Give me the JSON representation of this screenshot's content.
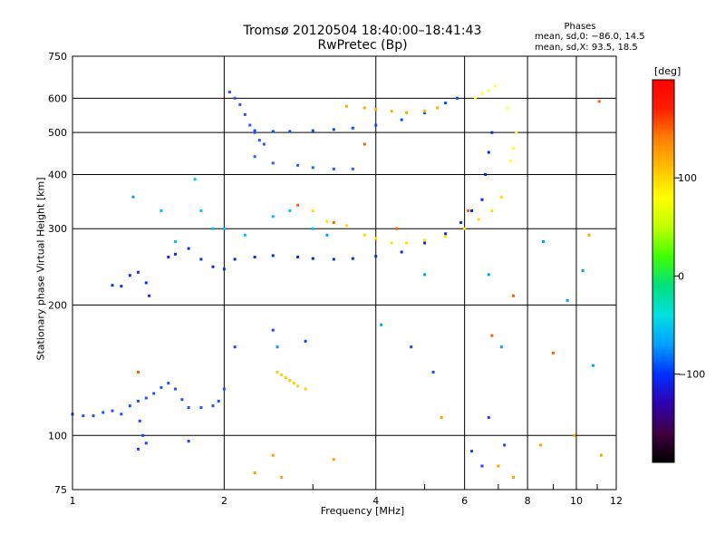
{
  "header": {
    "title": "Tromsø 20120504 18:40:00–18:41:43",
    "subtitle": "RwPretec (Bp)"
  },
  "phases": {
    "heading": "Phases",
    "line_0": "mean, sd,0: −86.0, 14.5",
    "line_x": "mean, sd,X:  93.5, 18.5"
  },
  "colors": {
    "axis": "#000000",
    "background": "#ffffff"
  },
  "colorbar": {
    "title": "[deg]",
    "ticks": [
      {
        "value": 100,
        "label": "100"
      },
      {
        "value": 0,
        "label": "0"
      },
      {
        "value": -100,
        "label": "−100"
      }
    ],
    "range": [
      -190,
      200
    ],
    "stops": [
      "#000000",
      "#400040",
      "#3000b0",
      "#0030ff",
      "#00a0ff",
      "#00e0e0",
      "#00e080",
      "#40ff00",
      "#c0ff00",
      "#ffff00",
      "#ffc000",
      "#ff8000",
      "#ff2000",
      "#ff0000"
    ]
  },
  "chart_data": {
    "type": "scatter",
    "title": "Tromsø 20120504 18:40:00–18:41:43",
    "subtitle": "RwPretec (Bp)",
    "xlabel": "Frequency [MHz]",
    "ylabel": "Stationary phase Virtual Height [km]",
    "xscale": "log",
    "yscale": "log",
    "xlim": [
      1,
      12
    ],
    "ylim": [
      75,
      750
    ],
    "xticks": [
      {
        "value": 1,
        "label": "1"
      },
      {
        "value": 2,
        "label": "2"
      },
      {
        "value": 4,
        "label": "4"
      },
      {
        "value": 6,
        "label": "6"
      },
      {
        "value": 8,
        "label": "8"
      },
      {
        "value": 10,
        "label": "10"
      },
      {
        "value": 12,
        "label": "12"
      }
    ],
    "yticks": [
      {
        "value": 75,
        "label": "75"
      },
      {
        "value": 100,
        "label": "100"
      },
      {
        "value": 200,
        "label": "200"
      },
      {
        "value": 300,
        "label": "300"
      },
      {
        "value": 400,
        "label": "400"
      },
      {
        "value": 500,
        "label": "500"
      },
      {
        "value": 600,
        "label": "600"
      },
      {
        "value": 750,
        "label": "750"
      }
    ],
    "grid": true,
    "colorbar_label": "[deg]",
    "series": [
      {
        "color": "#2050ff",
        "points": [
          [
            1.0,
            112
          ],
          [
            1.05,
            111
          ],
          [
            1.1,
            111
          ],
          [
            1.15,
            113
          ],
          [
            1.2,
            114
          ],
          [
            1.25,
            112
          ],
          [
            1.3,
            117
          ],
          [
            1.35,
            120
          ],
          [
            1.4,
            122
          ],
          [
            1.45,
            125
          ],
          [
            1.5,
            129
          ],
          [
            1.55,
            132
          ],
          [
            1.6,
            128
          ],
          [
            1.65,
            121
          ],
          [
            1.7,
            116
          ],
          [
            1.8,
            116
          ],
          [
            1.9,
            117
          ],
          [
            1.95,
            120
          ],
          [
            2.0,
            128
          ]
        ]
      },
      {
        "color": "#1030e0",
        "points": [
          [
            1.2,
            222
          ],
          [
            1.25,
            221
          ],
          [
            1.3,
            234
          ],
          [
            1.35,
            238
          ],
          [
            1.4,
            225
          ],
          [
            1.42,
            210
          ],
          [
            1.55,
            258
          ],
          [
            1.6,
            262
          ],
          [
            1.7,
            270
          ],
          [
            1.8,
            255
          ],
          [
            1.9,
            245
          ],
          [
            2.0,
            242
          ]
        ]
      },
      {
        "color": "#0030d0",
        "points": [
          [
            2.1,
            255
          ],
          [
            2.3,
            258
          ],
          [
            2.5,
            260
          ],
          [
            2.8,
            258
          ],
          [
            3.0,
            256
          ],
          [
            3.3,
            255
          ],
          [
            3.6,
            256
          ],
          [
            4.0,
            259
          ],
          [
            4.5,
            265
          ],
          [
            5.0,
            278
          ],
          [
            5.5,
            292
          ],
          [
            5.9,
            310
          ],
          [
            6.2,
            330
          ],
          [
            6.5,
            350
          ],
          [
            6.6,
            400
          ],
          [
            6.7,
            450
          ],
          [
            6.8,
            500
          ]
        ]
      },
      {
        "color": "#ffe000",
        "points": [
          [
            3.0,
            330
          ],
          [
            3.2,
            312
          ],
          [
            3.5,
            305
          ],
          [
            3.8,
            290
          ],
          [
            4.0,
            285
          ],
          [
            4.3,
            278
          ],
          [
            4.6,
            278
          ],
          [
            5.0,
            282
          ],
          [
            5.5,
            288
          ],
          [
            6.0,
            300
          ],
          [
            6.4,
            315
          ],
          [
            6.8,
            330
          ],
          [
            7.1,
            355
          ]
        ]
      },
      {
        "color": "#0050ff",
        "points": [
          [
            2.3,
            505
          ],
          [
            2.5,
            503
          ],
          [
            2.7,
            503
          ],
          [
            3.0,
            505
          ],
          [
            3.3,
            508
          ],
          [
            3.6,
            512
          ],
          [
            4.0,
            520
          ],
          [
            4.5,
            535
          ],
          [
            5.0,
            555
          ],
          [
            5.5,
            585
          ],
          [
            5.8,
            600
          ]
        ]
      },
      {
        "color": "#ffb000",
        "points": [
          [
            3.5,
            575
          ],
          [
            3.8,
            570
          ],
          [
            4.0,
            565
          ],
          [
            4.3,
            560
          ],
          [
            4.6,
            555
          ],
          [
            5.0,
            560
          ],
          [
            5.3,
            570
          ]
        ]
      },
      {
        "color": "#2060ff",
        "points": [
          [
            2.3,
            440
          ],
          [
            2.5,
            425
          ],
          [
            2.8,
            420
          ],
          [
            3.0,
            415
          ],
          [
            3.3,
            412
          ],
          [
            3.6,
            412
          ]
        ]
      },
      {
        "color": "#3050ff",
        "points": [
          [
            2.05,
            620
          ],
          [
            2.1,
            600
          ],
          [
            2.15,
            580
          ],
          [
            2.2,
            550
          ],
          [
            2.25,
            520
          ],
          [
            2.3,
            500
          ],
          [
            2.35,
            480
          ],
          [
            2.4,
            470
          ]
        ]
      },
      {
        "color": "#ffd000",
        "points": [
          [
            2.55,
            140
          ],
          [
            2.6,
            138
          ],
          [
            2.65,
            136
          ],
          [
            2.7,
            134
          ],
          [
            2.75,
            132
          ],
          [
            2.8,
            130
          ],
          [
            2.9,
            128
          ]
        ]
      },
      {
        "color": "#ffff40",
        "points": [
          [
            6.3,
            600
          ],
          [
            6.5,
            615
          ],
          [
            6.7,
            625
          ],
          [
            6.9,
            640
          ],
          [
            7.3,
            570
          ],
          [
            7.4,
            430
          ],
          [
            7.5,
            460
          ],
          [
            7.6,
            500
          ]
        ]
      },
      {
        "color": "#00c0ff",
        "points": [
          [
            1.5,
            330
          ],
          [
            1.6,
            280
          ],
          [
            1.75,
            390
          ],
          [
            1.8,
            330
          ],
          [
            1.9,
            300
          ],
          [
            2.0,
            300
          ],
          [
            2.2,
            290
          ],
          [
            2.5,
            320
          ],
          [
            2.7,
            330
          ],
          [
            3.0,
            300
          ]
        ]
      },
      {
        "color": "#ff6000",
        "points": [
          [
            1.35,
            140
          ],
          [
            2.8,
            340
          ],
          [
            3.3,
            310
          ],
          [
            3.8,
            470
          ],
          [
            4.4,
            300
          ],
          [
            6.1,
            330
          ],
          [
            6.8,
            170
          ],
          [
            7.5,
            210
          ],
          [
            9.0,
            155
          ],
          [
            11.1,
            590
          ]
        ]
      },
      {
        "color": "#00a0ff",
        "points": [
          [
            1.32,
            355
          ],
          [
            2.55,
            160
          ],
          [
            3.2,
            290
          ],
          [
            4.1,
            180
          ],
          [
            5.0,
            235
          ],
          [
            6.7,
            235
          ],
          [
            7.1,
            160
          ],
          [
            8.6,
            280
          ],
          [
            9.6,
            205
          ],
          [
            10.3,
            240
          ],
          [
            10.8,
            145
          ]
        ]
      },
      {
        "color": "#2040ff",
        "points": [
          [
            1.36,
            108
          ],
          [
            1.38,
            100
          ],
          [
            1.4,
            96
          ],
          [
            1.35,
            93
          ],
          [
            1.7,
            97
          ],
          [
            2.1,
            160
          ],
          [
            2.5,
            175
          ],
          [
            2.9,
            165
          ],
          [
            4.7,
            160
          ],
          [
            5.2,
            140
          ],
          [
            6.2,
            92
          ],
          [
            6.5,
            85
          ],
          [
            6.7,
            110
          ],
          [
            7.2,
            95
          ]
        ]
      },
      {
        "color": "#ffa000",
        "points": [
          [
            2.5,
            90
          ],
          [
            2.3,
            82
          ],
          [
            2.6,
            80
          ],
          [
            3.3,
            88
          ],
          [
            5.4,
            110
          ],
          [
            7.0,
            85
          ],
          [
            7.5,
            80
          ],
          [
            8.5,
            95
          ],
          [
            9.9,
            100
          ],
          [
            11.2,
            90
          ],
          [
            10.6,
            290
          ]
        ]
      }
    ]
  }
}
